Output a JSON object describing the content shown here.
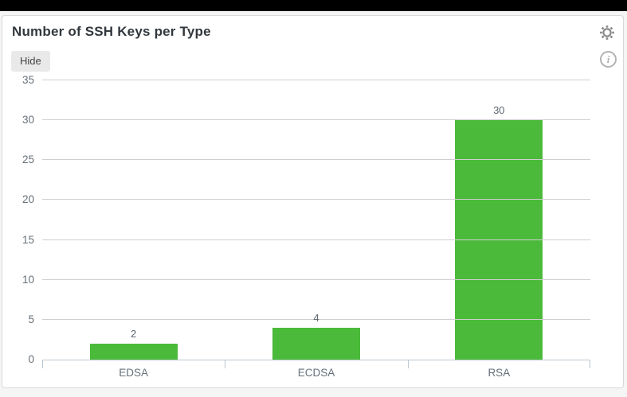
{
  "window": {
    "top_bar_color": "#000000",
    "page_background": "#f5f5f5"
  },
  "panel": {
    "title": "Number of SSH Keys per Type",
    "hide_button_label": "Hide",
    "info_glyph": "i",
    "icons": [
      "gear-icon",
      "info-icon"
    ]
  },
  "chart_data": {
    "type": "bar",
    "title": "Number of SSH Keys per Type",
    "categories": [
      "EDSA",
      "ECDSA",
      "RSA"
    ],
    "values": [
      2,
      4,
      30
    ],
    "value_labels": [
      "2",
      "4",
      "30"
    ],
    "ylim": [
      0,
      35
    ],
    "yticks": [
      0,
      5,
      10,
      15,
      20,
      25,
      30,
      35
    ],
    "xlabel": "",
    "ylabel": "",
    "grid": true,
    "gridlines_over_bars": true,
    "legend": false,
    "bar_color": "#4bba3a",
    "grid_color": "#cfcfcf",
    "axis_color": "#b9c7d2",
    "tick_label_color": "#66707a",
    "value_label_color": "#5d6770"
  }
}
